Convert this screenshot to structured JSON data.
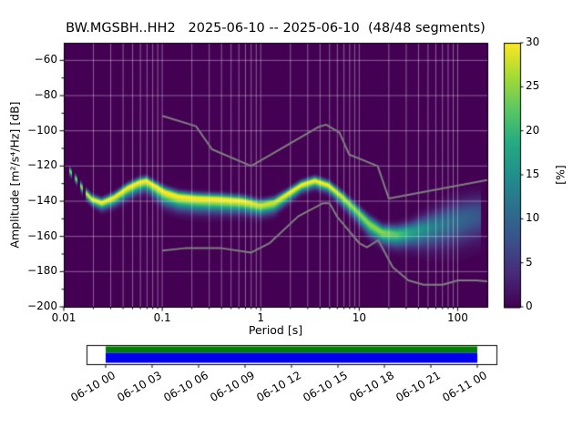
{
  "chart_data": {
    "type": "heatmap",
    "title": "BW.MGSBH..HH2   2025-06-10 -- 2025-06-10  (48/48 segments)",
    "xlabel": "Period [s]",
    "ylabel": "Amplitude [m²/s⁴/Hz] [dB]",
    "colorbar_label": "[%]",
    "x_scale": "log",
    "xlim": [
      0.01,
      200
    ],
    "ylim": [
      -200,
      -50
    ],
    "x_ticks": [
      0.01,
      0.1,
      1,
      10,
      100
    ],
    "x_ticklabels": [
      "0.01",
      "0.1",
      "1",
      "10",
      "100"
    ],
    "y_ticks": [
      -60,
      -80,
      -100,
      -120,
      -140,
      -160,
      -180,
      -200
    ],
    "y_ticklabels": [
      "−60",
      "−80",
      "−100",
      "−120",
      "−140",
      "−160",
      "−180",
      "−200"
    ],
    "colorbar_ticks": [
      0,
      5,
      10,
      15,
      20,
      25,
      30
    ],
    "colorbar_range": [
      0,
      30
    ],
    "grid_on": true,
    "grid_color": "rgba(255,255,255,0.55)",
    "background_value_color": "#440154",
    "colormap_stops": [
      [
        0.0,
        68,
        1,
        84
      ],
      [
        0.13,
        71,
        44,
        122
      ],
      [
        0.25,
        59,
        81,
        139
      ],
      [
        0.38,
        44,
        113,
        142
      ],
      [
        0.5,
        33,
        144,
        141
      ],
      [
        0.63,
        39,
        173,
        129
      ],
      [
        0.75,
        92,
        200,
        99
      ],
      [
        0.88,
        170,
        220,
        50
      ],
      [
        1.0,
        253,
        231,
        37
      ]
    ],
    "psd_ridge": {
      "comment": "probability ridge of PPSD: mode amplitude in dB vs period, peak probability [%] and gaussian spread [dB] below/above mode",
      "periods": [
        0.0105,
        0.012,
        0.014,
        0.016,
        0.019,
        0.024,
        0.032,
        0.044,
        0.057,
        0.068,
        0.084,
        0.105,
        0.145,
        0.22,
        0.38,
        0.64,
        0.98,
        1.35,
        1.85,
        2.55,
        3.5,
        4.8,
        6.6,
        9.1,
        12.5,
        17,
        24,
        32,
        50,
        68,
        100,
        135,
        170
      ],
      "mode_db": [
        -120,
        -124,
        -129,
        -134,
        -138.5,
        -140.5,
        -137.5,
        -132,
        -129,
        -128,
        -131,
        -134.5,
        -137,
        -138,
        -138.5,
        -139.5,
        -142,
        -140.5,
        -135.5,
        -130.5,
        -128,
        -130.5,
        -137,
        -144.5,
        -152.5,
        -157.5,
        -158.5,
        -157.5,
        -155,
        -153,
        -150.5,
        -148.5,
        -147.5
      ],
      "peak_pct": [
        25,
        25,
        25,
        28,
        30,
        30,
        30,
        30,
        30,
        30,
        30,
        30,
        30,
        30,
        30,
        30,
        28,
        28,
        30,
        30,
        30,
        30,
        28,
        25,
        25,
        25,
        22,
        18,
        14,
        12,
        10,
        9,
        8
      ],
      "sigma_below": [
        1.5,
        1.5,
        1.5,
        2,
        2,
        2.5,
        3,
        3.5,
        3.5,
        3.5,
        4,
        4.5,
        4.5,
        4.5,
        4.5,
        4,
        3.5,
        3.5,
        3,
        2.5,
        2.5,
        2.5,
        3,
        3.5,
        4,
        4,
        4.5,
        5,
        7,
        8,
        9,
        9,
        9
      ],
      "sigma_above": [
        1.2,
        1.2,
        1.2,
        1.5,
        1.5,
        1.5,
        1.5,
        1.5,
        1.5,
        1.5,
        1.5,
        1.8,
        1.8,
        1.8,
        1.8,
        1.8,
        1.8,
        1.8,
        1.5,
        1.5,
        1.5,
        1.5,
        1.8,
        2,
        2.5,
        2.5,
        3,
        3.5,
        5,
        6,
        7,
        7,
        7
      ]
    },
    "noise_models": {
      "color": "#7f7f7f",
      "high": {
        "periods": [
          0.1,
          0.22,
          0.32,
          0.8,
          3.8,
          4.6,
          6.3,
          7.9,
          15.4,
          20,
          200
        ],
        "db": [
          -91.5,
          -97.4,
          -110.5,
          -120,
          -98,
          -96.5,
          -101,
          -113.5,
          -120,
          -138.5,
          -128
        ]
      },
      "low": {
        "periods": [
          0.1,
          0.17,
          0.4,
          0.8,
          1.24,
          2.4,
          4.3,
          5,
          6,
          10,
          12,
          15.6,
          21.9,
          31.6,
          45,
          70,
          101,
          154,
          200
        ],
        "db": [
          -168,
          -166.7,
          -166.7,
          -169.2,
          -163.7,
          -148.6,
          -141.1,
          -141.1,
          -149,
          -163.8,
          -166.2,
          -162.1,
          -177.5,
          -185,
          -187.5,
          -187.5,
          -185,
          -185,
          -185.5
        ]
      }
    },
    "timeline": {
      "labels": [
        "06-10 00",
        "06-10 03",
        "06-10 06",
        "06-10 09",
        "06-10 12",
        "06-10 15",
        "06-10 18",
        "06-10 21",
        "06-11 00"
      ],
      "hours": [
        0,
        3,
        6,
        9,
        12,
        15,
        18,
        21,
        24
      ],
      "range_hours": [
        0,
        24
      ],
      "coverage_color_top": "#008000",
      "coverage_color_bottom": "#0000ee",
      "coverage_fraction": [
        0.0,
        1.0
      ]
    }
  }
}
